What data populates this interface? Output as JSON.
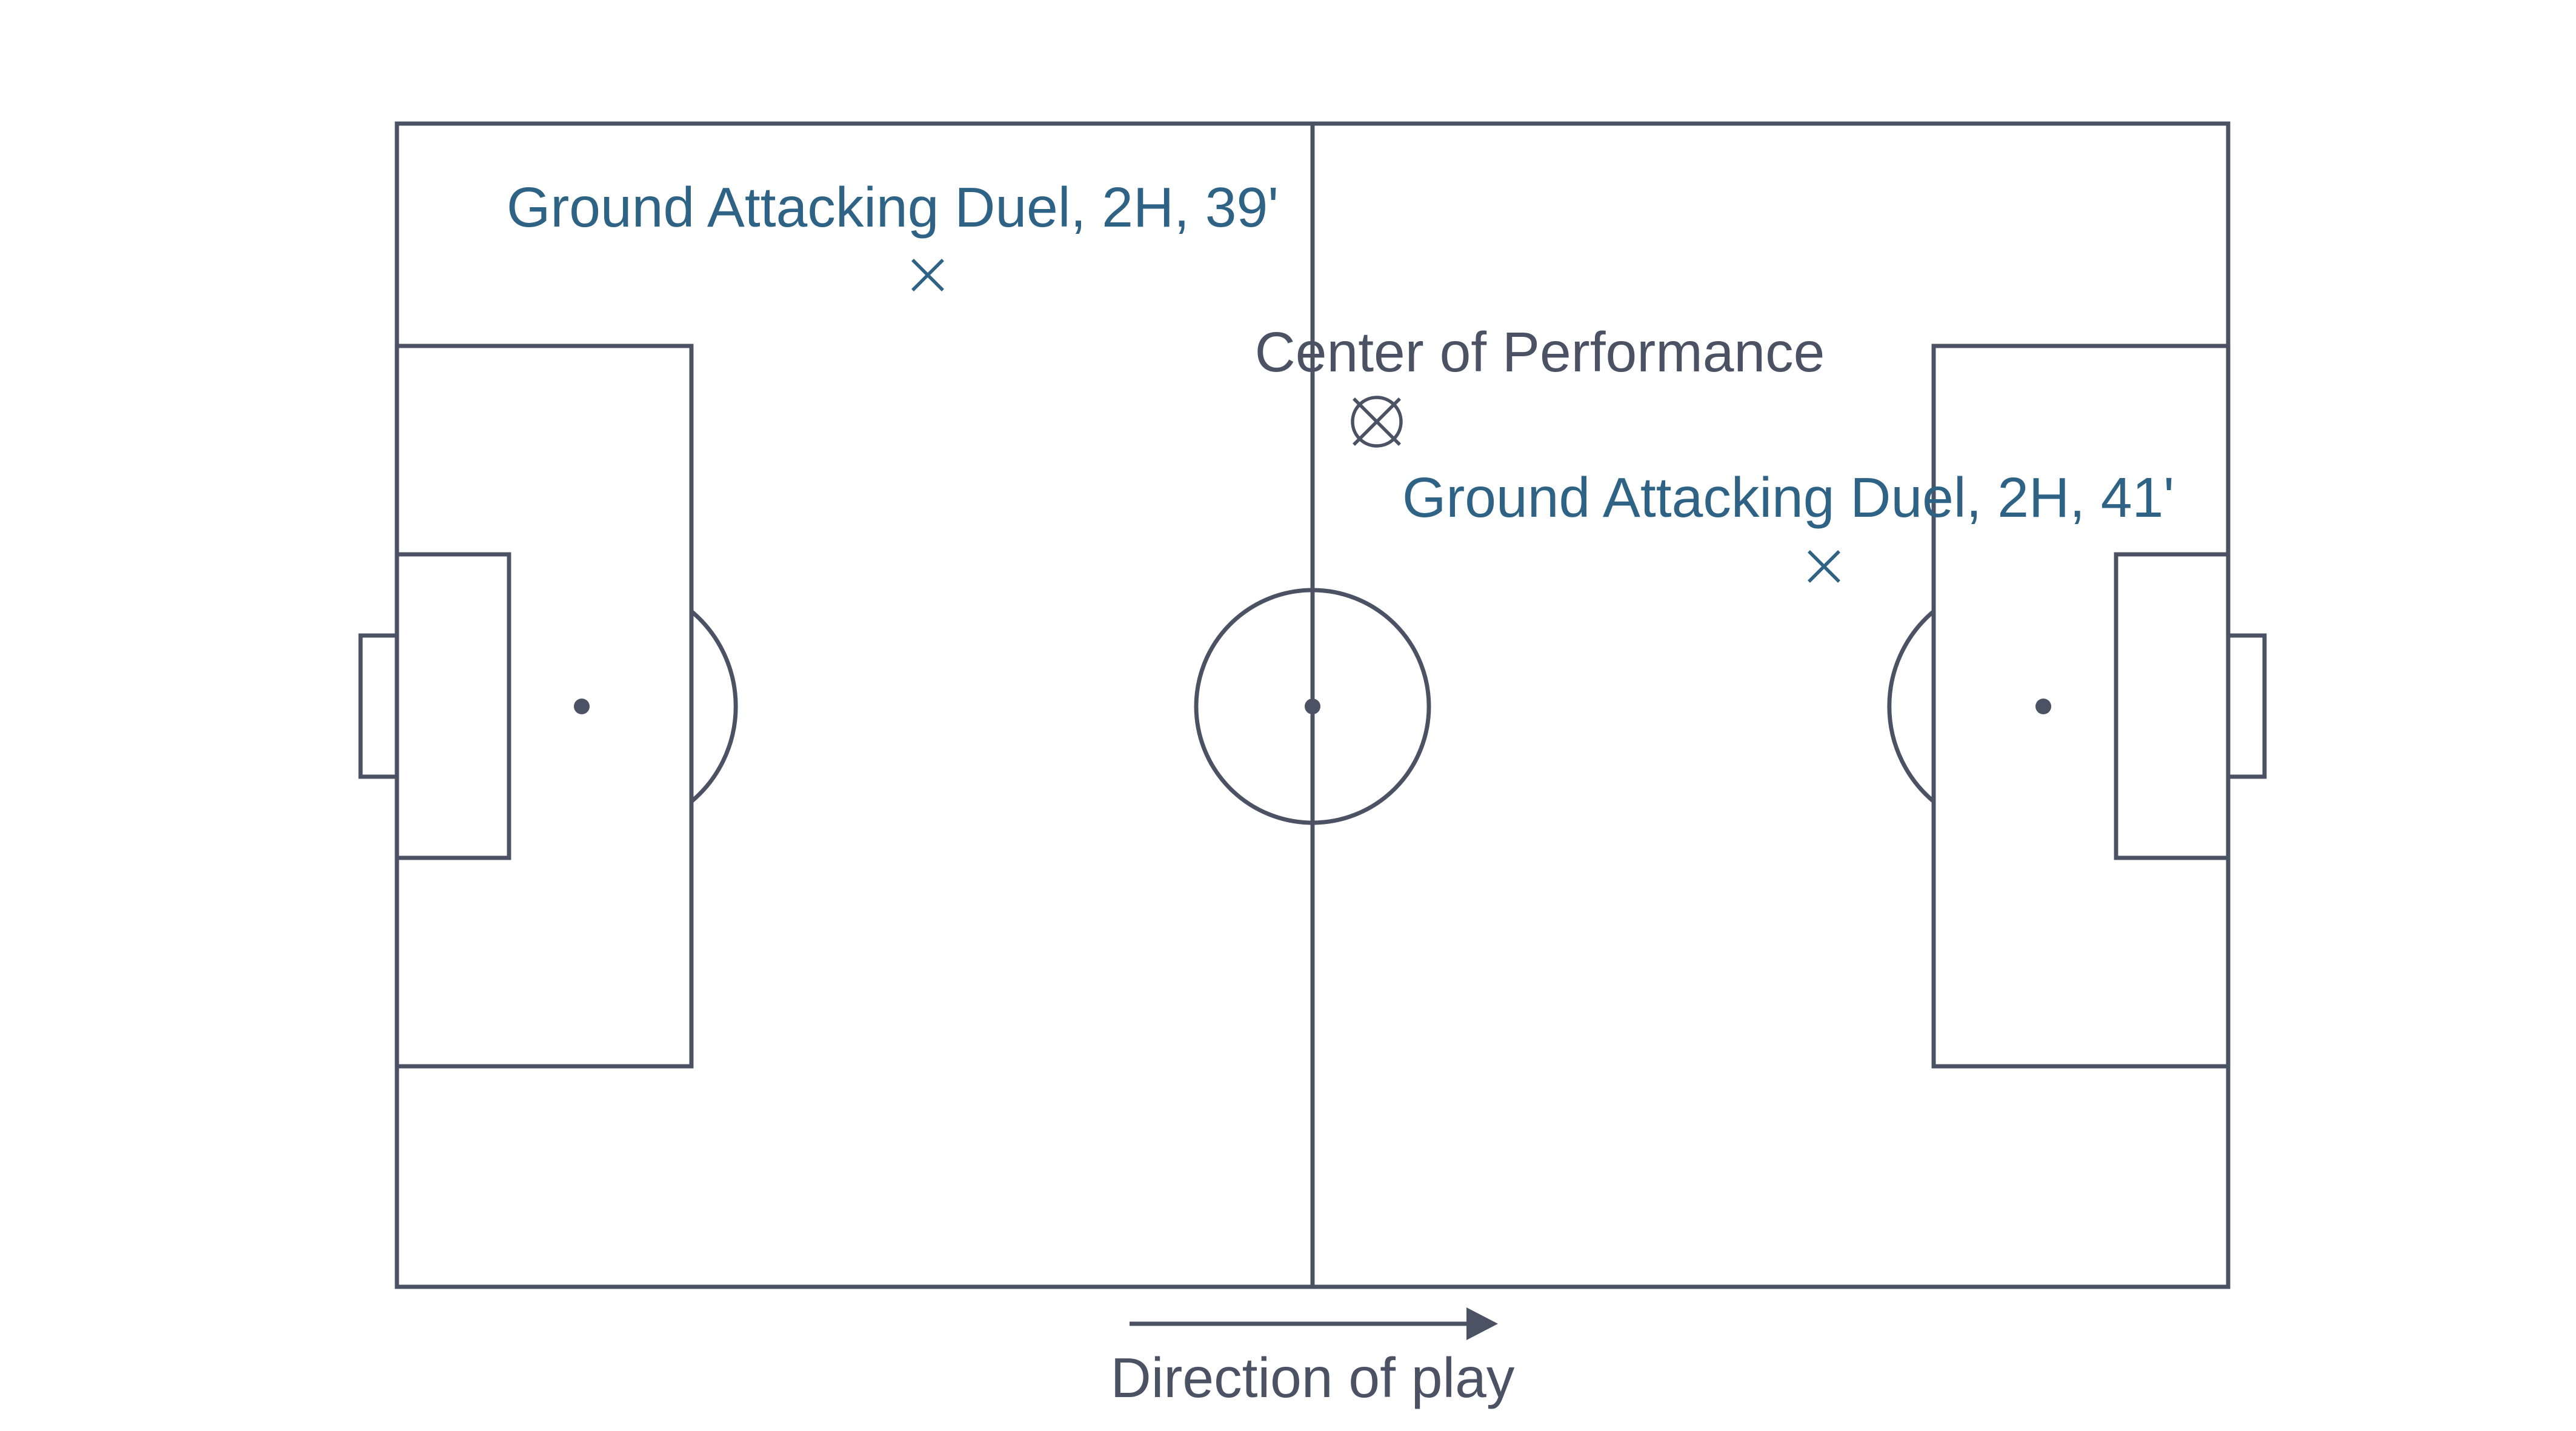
{
  "colors": {
    "pitch_line": "#4a5264",
    "event": "#2e6385",
    "center_label": "#4a5264",
    "background": "#ffffff"
  },
  "events": [
    {
      "label": "Ground Attacking Duel, 2H, 39'",
      "marker": "x-icon"
    },
    {
      "label": "Ground Attacking Duel, 2H, 41'",
      "marker": "x-icon"
    }
  ],
  "center_of_performance": {
    "label": "Center of Performance",
    "marker": "circled-x-icon"
  },
  "direction": {
    "label": "Direction of play",
    "marker": "arrow-right-icon"
  }
}
